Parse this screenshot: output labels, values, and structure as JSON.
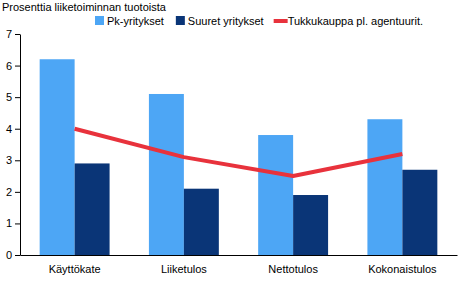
{
  "chart_data": {
    "type": "bar",
    "y_label": "Prosenttia liiketoiminnan tuotoista",
    "categories": [
      "Käyttökate",
      "Liiketulos",
      "Nettotulos",
      "Kokonaistulos"
    ],
    "series": [
      {
        "name": "Pk-yritykset",
        "color": "#4da6f5",
        "values": [
          6.2,
          5.1,
          3.8,
          4.3
        ]
      },
      {
        "name": "Suuret yritykset",
        "color": "#0a3577",
        "values": [
          2.9,
          2.1,
          1.9,
          2.7
        ]
      },
      {
        "name": "Tukkukauppa pl. agentuurit.",
        "color": "#e8323c",
        "type": "line",
        "values": [
          4.0,
          3.1,
          2.5,
          3.2
        ]
      }
    ],
    "ylim": [
      0,
      7
    ],
    "yticks": [
      0,
      1,
      2,
      3,
      4,
      5,
      6,
      7
    ],
    "legend": "top"
  }
}
